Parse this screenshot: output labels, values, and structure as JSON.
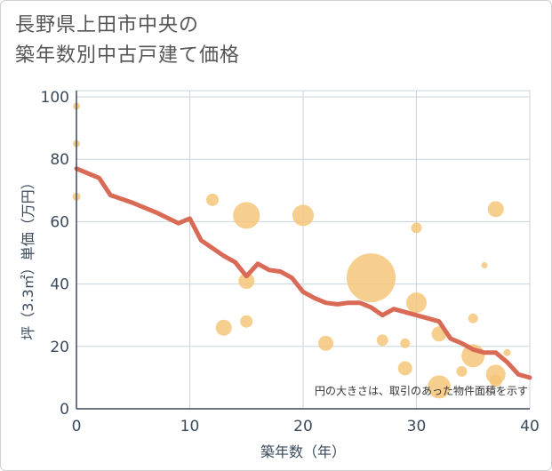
{
  "title_line1": "長野県上田市中央の",
  "title_line2": "築年数別中古戸建て価格",
  "chart_data": {
    "type": "scatter",
    "xlabel": "築年数（年）",
    "ylabel": "坪（3.3㎡）単価（万円）",
    "xlim": [
      0,
      40
    ],
    "ylim": [
      0,
      102
    ],
    "xticks": [
      0,
      10,
      20,
      30,
      40
    ],
    "yticks": [
      0,
      20,
      40,
      60,
      80,
      100
    ],
    "note": "円の大きさは、取引のあった物件面積を示す",
    "colors": {
      "bubble": "#f5c57a",
      "line": "#d96a55",
      "grid": "#c9d3dd",
      "axis": "#3a4a5c"
    },
    "points": [
      {
        "x": 0,
        "y": 97,
        "size": 8
      },
      {
        "x": 0,
        "y": 85,
        "size": 8
      },
      {
        "x": 0,
        "y": 68,
        "size": 9
      },
      {
        "x": 12,
        "y": 67,
        "size": 14
      },
      {
        "x": 15,
        "y": 62,
        "size": 30
      },
      {
        "x": 20,
        "y": 62,
        "size": 24
      },
      {
        "x": 15,
        "y": 41,
        "size": 18
      },
      {
        "x": 15,
        "y": 28,
        "size": 14
      },
      {
        "x": 13,
        "y": 26,
        "size": 18
      },
      {
        "x": 22,
        "y": 21,
        "size": 17
      },
      {
        "x": 26,
        "y": 42,
        "size": 55
      },
      {
        "x": 30,
        "y": 58,
        "size": 12
      },
      {
        "x": 30,
        "y": 34,
        "size": 23
      },
      {
        "x": 27,
        "y": 22,
        "size": 13
      },
      {
        "x": 29,
        "y": 21,
        "size": 11
      },
      {
        "x": 29,
        "y": 13,
        "size": 16
      },
      {
        "x": 32,
        "y": 24,
        "size": 17
      },
      {
        "x": 32,
        "y": 7,
        "size": 26
      },
      {
        "x": 34,
        "y": 12,
        "size": 12
      },
      {
        "x": 35,
        "y": 29,
        "size": 11
      },
      {
        "x": 35,
        "y": 17,
        "size": 26
      },
      {
        "x": 36,
        "y": 46,
        "size": 7
      },
      {
        "x": 37,
        "y": 64,
        "size": 18
      },
      {
        "x": 37,
        "y": 11,
        "size": 22
      },
      {
        "x": 37,
        "y": 9,
        "size": 14
      },
      {
        "x": 38,
        "y": 18,
        "size": 8
      }
    ],
    "trend": {
      "x": [
        0,
        2,
        3,
        5,
        7,
        9,
        10,
        11,
        12,
        13,
        14,
        15,
        16,
        17,
        18,
        19,
        20,
        21,
        22,
        23,
        24,
        25,
        26,
        27,
        28,
        29,
        30,
        31,
        32,
        33,
        34,
        35,
        36,
        37,
        38,
        39,
        40
      ],
      "y": [
        77,
        74,
        68.5,
        66,
        63,
        59.5,
        61,
        54,
        51.5,
        49,
        47,
        42.5,
        46.5,
        44.5,
        44,
        42,
        37.5,
        35.5,
        34,
        33.5,
        34,
        34,
        32.5,
        30,
        32,
        31,
        30,
        29,
        28,
        22.5,
        21,
        19,
        18,
        18,
        15,
        11,
        10
      ]
    }
  }
}
